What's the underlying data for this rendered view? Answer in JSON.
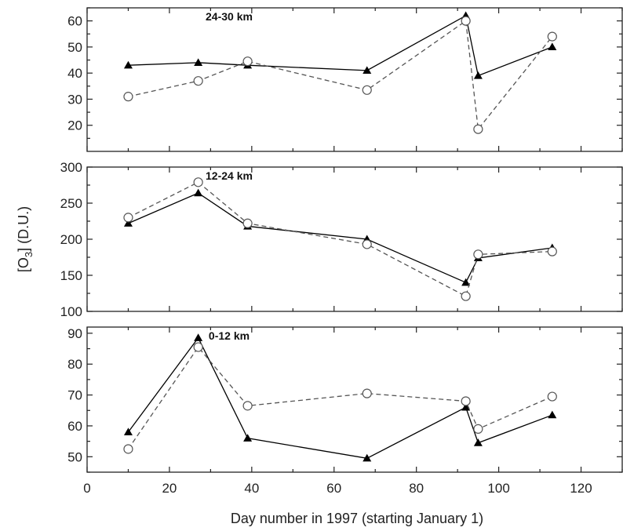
{
  "chart_data": {
    "type": "line",
    "xlabel": "Day number in 1997 (starting January 1)",
    "ylabel": {
      "prefix": "[O",
      "subscript": "3",
      "suffix": "] (D.U.)"
    },
    "xlim": [
      0,
      130
    ],
    "xticks": [
      0,
      20,
      40,
      60,
      80,
      100,
      120
    ],
    "grid": false,
    "legend": "none",
    "series_styles": [
      {
        "marker": "filled-triangle",
        "line": "solid",
        "color": "#000000"
      },
      {
        "marker": "open-circle",
        "line": "dashed",
        "color": "#555555"
      }
    ],
    "panels": [
      {
        "title": "24-30 km",
        "ylim": [
          10,
          65
        ],
        "yticks": [
          20,
          30,
          40,
          50,
          60
        ],
        "series": [
          {
            "x": [
              10,
              27,
              39,
              68,
              92,
              95,
              113
            ],
            "values": [
              43,
              44,
              43,
              41,
              62,
              39,
              50
            ]
          },
          {
            "x": [
              10,
              27,
              39,
              68,
              92,
              95,
              113
            ],
            "values": [
              31,
              37,
              44.5,
              33.5,
              60,
              18.5,
              54
            ]
          }
        ]
      },
      {
        "title": "12-24 km",
        "ylim": [
          100,
          300
        ],
        "yticks": [
          100,
          150,
          200,
          250,
          300
        ],
        "series": [
          {
            "x": [
              10,
              27,
              39,
              68,
              92,
              95,
              113
            ],
            "values": [
              222,
              264,
              218,
              200,
              140,
              174,
              188
            ]
          },
          {
            "x": [
              10,
              27,
              39,
              68,
              92,
              95,
              113
            ],
            "values": [
              230,
              279,
              222,
              193,
              121,
              179,
              183
            ]
          }
        ]
      },
      {
        "title": "0-12 km",
        "ylim": [
          45,
          92
        ],
        "yticks": [
          50,
          60,
          70,
          80,
          90
        ],
        "series": [
          {
            "x": [
              10,
              27,
              39,
              68,
              92,
              95,
              113
            ],
            "values": [
              58,
              88.5,
              56,
              49.5,
              66,
              54.5,
              63.5
            ]
          },
          {
            "x": [
              10,
              27,
              39,
              68,
              92,
              95,
              113
            ],
            "values": [
              52.5,
              85.5,
              66.5,
              70.5,
              68,
              59,
              69.5
            ]
          }
        ]
      }
    ]
  }
}
